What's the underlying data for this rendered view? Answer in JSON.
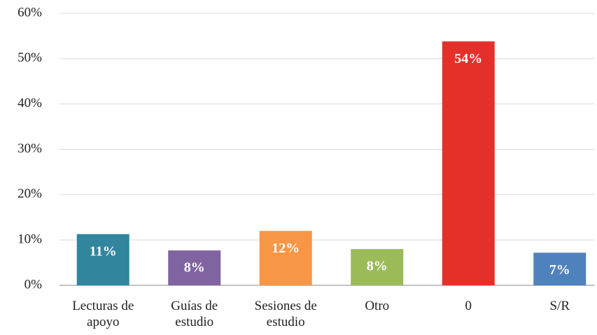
{
  "chart_data": {
    "type": "bar",
    "categories": [
      "Lecturas de apoyo",
      "Guías de estudio",
      "Sesiones de estudio",
      "Otro",
      "0",
      "S/R"
    ],
    "values": [
      11.3,
      7.7,
      12,
      8,
      53.8,
      7.2
    ],
    "value_labels": [
      "11%",
      "8%",
      "12%",
      "8%",
      "54%",
      "7%"
    ],
    "colors": [
      "#31859c",
      "#8064a2",
      "#f79646",
      "#9bbb59",
      "#e5302a",
      "#4f81bd"
    ],
    "ylim": [
      0,
      60
    ],
    "yticks": [
      {
        "value": 0,
        "label": "0%"
      },
      {
        "value": 10,
        "label": "10%"
      },
      {
        "value": 20,
        "label": "20%"
      },
      {
        "value": 30,
        "label": "30%"
      },
      {
        "value": 40,
        "label": "40%"
      },
      {
        "value": 50,
        "label": "50%"
      },
      {
        "value": 60,
        "label": "60%"
      }
    ],
    "grid": true
  }
}
